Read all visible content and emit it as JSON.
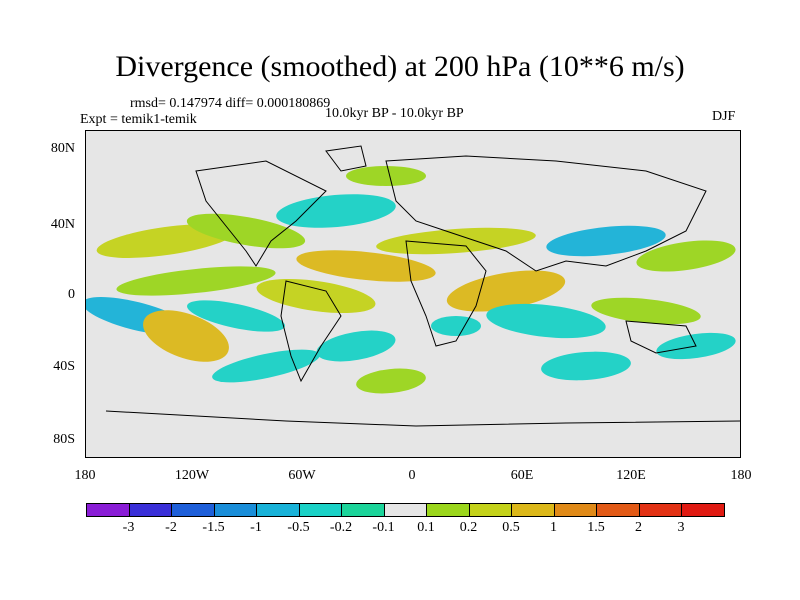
{
  "title": "Divergence (smoothed) at 200 hPa (10**6 m/s)",
  "stats": "rmsd= 0.147974 diff= 0.000180869",
  "experiment": "Expt = temik1-temik",
  "period": "10.0kyr BP - 10.0kyr BP",
  "season": "DJF",
  "y_ticks": [
    "80N",
    "40N",
    "0",
    "40S",
    "80S"
  ],
  "x_ticks": [
    "180",
    "120W",
    "60W",
    "0",
    "60E",
    "120E",
    "180"
  ],
  "colorbar": {
    "labels": [
      "-3",
      "-2",
      "-1.5",
      "-1",
      "-0.5",
      "-0.2",
      "-0.1",
      "0.1",
      "0.2",
      "0.5",
      "1",
      "1.5",
      "2",
      "3"
    ],
    "colors": [
      "#8a1dd6",
      "#3a2fd8",
      "#1e5fd9",
      "#1a8ed9",
      "#19b2d8",
      "#1ad1c6",
      "#1bd49a",
      "#e6e6e6",
      "#9bd61c",
      "#c4d21a",
      "#dcb81a",
      "#e08a18",
      "#e25a16",
      "#e23214",
      "#e01a12"
    ]
  }
}
